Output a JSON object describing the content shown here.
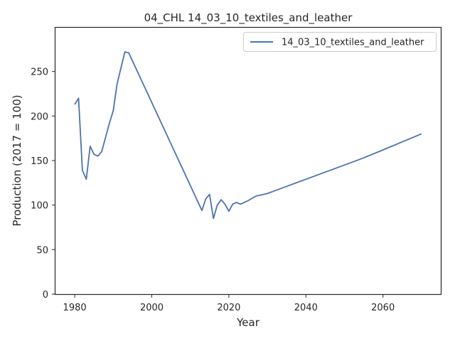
{
  "chart_data": {
    "type": "line",
    "title": "04_CHL 14_03_10_textiles_and_leather",
    "xlabel": "Year",
    "ylabel": "Production (2017 = 100)",
    "xlim": [
      1975,
      2075
    ],
    "ylim": [
      0,
      300
    ],
    "xticks": [
      1980,
      2000,
      2020,
      2040,
      2060
    ],
    "yticks": [
      0,
      50,
      100,
      150,
      200,
      250
    ],
    "grid": false,
    "legend_position": "top-right",
    "series": [
      {
        "name": "14_03_10_textiles_and_leather",
        "color": "#4c72b0",
        "points": [
          [
            1980,
            213
          ],
          [
            1981,
            220
          ],
          [
            1982,
            139
          ],
          [
            1983,
            129
          ],
          [
            1984,
            166
          ],
          [
            1985,
            157
          ],
          [
            1986,
            155
          ],
          [
            1987,
            160
          ],
          [
            1988,
            176
          ],
          [
            1989,
            192
          ],
          [
            1990,
            206
          ],
          [
            1991,
            236
          ],
          [
            1992,
            254
          ],
          [
            1993,
            272
          ],
          [
            1994,
            271
          ],
          [
            2013,
            94
          ],
          [
            2014,
            107
          ],
          [
            2015,
            112
          ],
          [
            2016,
            85
          ],
          [
            2017,
            100
          ],
          [
            2018,
            106
          ],
          [
            2019,
            101
          ],
          [
            2020,
            93
          ],
          [
            2021,
            101
          ],
          [
            2022,
            103
          ],
          [
            2023,
            101
          ],
          [
            2024,
            103
          ],
          [
            2025,
            105
          ],
          [
            2027,
            110
          ],
          [
            2030,
            113
          ],
          [
            2035,
            121
          ],
          [
            2040,
            129
          ],
          [
            2045,
            137
          ],
          [
            2050,
            145
          ],
          [
            2055,
            153
          ],
          [
            2060,
            162
          ],
          [
            2065,
            171
          ],
          [
            2070,
            180
          ]
        ]
      }
    ]
  }
}
